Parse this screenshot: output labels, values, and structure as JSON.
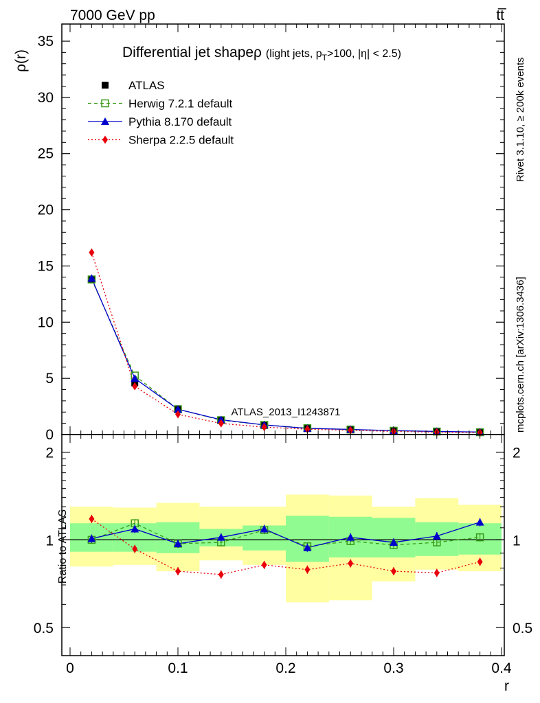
{
  "header": {
    "energy_label": "7000 GeV pp",
    "process_label": "tt̅"
  },
  "side_labels": {
    "rivet": "Rivet 3.1.10, ≥ 200k events",
    "mcplots": "mcplots.cern.ch [arXiv:1306.3436]"
  },
  "chart_data": [
    {
      "type": "line",
      "title": "Differential jet shapeρ",
      "title_sub": "(light jets, p",
      "title_sub_T": "T",
      "title_sub_rest": ">100, |η| < 2.5)",
      "watermark": "ATLAS_2013_I1243871",
      "xlabel": "r",
      "ylabel": "ρ(r)",
      "xlim": [
        0,
        0.4
      ],
      "ylim": [
        0,
        35
      ],
      "x_ticks": [
        "0",
        "0.1",
        "0.2",
        "0.3",
        "0.4"
      ],
      "y_ticks": [
        "0",
        "5",
        "10",
        "15",
        "20",
        "25",
        "30",
        "35"
      ],
      "legend_position": "top-left",
      "x": [
        0.02,
        0.06,
        0.1,
        0.14,
        0.18,
        0.22,
        0.26,
        0.3,
        0.34,
        0.38
      ],
      "series": [
        {
          "name": "ATLAS",
          "color": "#000000",
          "marker": "filled-square",
          "line": "none",
          "values": [
            13.8,
            4.6,
            2.3,
            1.3,
            0.8,
            0.6,
            0.45,
            0.35,
            0.27,
            0.2
          ]
        },
        {
          "name": "Herwig 7.2.1 default",
          "color": "#3a9a1a",
          "marker": "open-square",
          "line": "dashed",
          "values": [
            13.8,
            5.25,
            2.25,
            1.28,
            0.86,
            0.57,
            0.45,
            0.34,
            0.27,
            0.21
          ]
        },
        {
          "name": "Pythia 8.170 default",
          "color": "#0000cc",
          "marker": "triangle",
          "line": "solid",
          "values": [
            13.9,
            5.0,
            2.25,
            1.32,
            0.86,
            0.55,
            0.46,
            0.35,
            0.28,
            0.23
          ]
        },
        {
          "name": "Sherpa 2.2.5 default",
          "color": "#e8000b",
          "marker": "diamond",
          "line": "dotted",
          "values": [
            16.2,
            4.3,
            1.8,
            0.99,
            0.66,
            0.48,
            0.38,
            0.28,
            0.21,
            0.17
          ]
        }
      ]
    },
    {
      "type": "line",
      "ylabel": "Ratio to ATLAS",
      "xlabel": "r",
      "xlim": [
        0,
        0.4
      ],
      "ylim": [
        0.4,
        2.3
      ],
      "scale": "log",
      "y_ticks": [
        "0.5",
        "1",
        "2"
      ],
      "x": [
        0.02,
        0.06,
        0.1,
        0.14,
        0.18,
        0.22,
        0.26,
        0.3,
        0.34,
        0.38
      ],
      "bin_edges": [
        0,
        0.04,
        0.08,
        0.12,
        0.16,
        0.2,
        0.24,
        0.28,
        0.32,
        0.36,
        0.4
      ],
      "band_inner": [
        [
          0.91,
          1.14
        ],
        [
          0.91,
          1.14
        ],
        [
          0.9,
          1.15
        ],
        [
          0.95,
          1.09
        ],
        [
          0.92,
          1.12
        ],
        [
          0.84,
          1.21
        ],
        [
          0.87,
          1.2
        ],
        [
          0.87,
          1.19
        ],
        [
          0.88,
          1.15
        ],
        [
          0.89,
          1.14
        ]
      ],
      "band_outer": [
        [
          0.81,
          1.3
        ],
        [
          0.82,
          1.29
        ],
        [
          0.78,
          1.34
        ],
        [
          0.85,
          1.3
        ],
        [
          0.82,
          1.3
        ],
        [
          0.61,
          1.43
        ],
        [
          0.62,
          1.42
        ],
        [
          0.72,
          1.3
        ],
        [
          0.79,
          1.39
        ],
        [
          0.78,
          1.32
        ]
      ],
      "series": [
        {
          "name": "Herwig 7.2.1 default",
          "color": "#3a9a1a",
          "marker": "open-square",
          "line": "dashed",
          "values": [
            1.0,
            1.14,
            0.97,
            0.98,
            1.08,
            0.95,
            0.99,
            0.96,
            0.98,
            1.02
          ]
        },
        {
          "name": "Pythia 8.170 default",
          "color": "#0000cc",
          "marker": "triangle",
          "line": "solid",
          "values": [
            1.01,
            1.09,
            0.97,
            1.02,
            1.09,
            0.94,
            1.02,
            0.98,
            1.03,
            1.15
          ]
        },
        {
          "name": "Sherpa 2.2.5 default",
          "color": "#e8000b",
          "marker": "diamond",
          "line": "dotted",
          "values": [
            1.18,
            0.93,
            0.78,
            0.76,
            0.82,
            0.79,
            0.83,
            0.78,
            0.77,
            0.84
          ]
        }
      ],
      "reference_value": 1,
      "colors": {
        "band_inner": "#90fb90",
        "band_outer": "#fffea0"
      }
    }
  ]
}
